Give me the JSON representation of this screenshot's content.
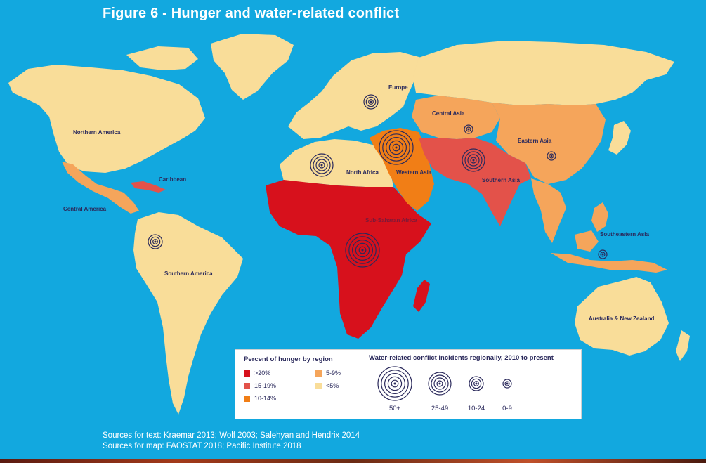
{
  "title": "Figure 6 - Hunger and water-related conflict",
  "colors": {
    "ocean": "#12a8df",
    "gt20": "#d7111c",
    "p15_19": "#e3524a",
    "p10_14": "#f17e16",
    "p5_9": "#f5a55b",
    "lt5": "#f9dd99",
    "ring": "#2b2a5c"
  },
  "regions": [
    {
      "id": "northern-america",
      "label": "Northern America",
      "hunger": "<5%"
    },
    {
      "id": "central-america",
      "label": "Central America",
      "hunger": "5-9%"
    },
    {
      "id": "caribbean",
      "label": "Caribbean",
      "hunger": "15-19%"
    },
    {
      "id": "southern-america",
      "label": "Southern America",
      "hunger": "<5%"
    },
    {
      "id": "europe",
      "label": "Europe",
      "hunger": "<5%"
    },
    {
      "id": "north-africa",
      "label": "North Africa",
      "hunger": "<5%"
    },
    {
      "id": "western-asia",
      "label": "Western Asia",
      "hunger": "10-14%"
    },
    {
      "id": "central-asia",
      "label": "Central Asia",
      "hunger": "5-9%"
    },
    {
      "id": "southern-asia",
      "label": "Southern Asia",
      "hunger": "15-19%"
    },
    {
      "id": "eastern-asia",
      "label": "Eastern Asia",
      "hunger": "5-9%"
    },
    {
      "id": "southeastern-asia",
      "label": "Southeastern Asia",
      "hunger": "5-9%"
    },
    {
      "id": "sub-saharan-africa",
      "label": "Sub-Saharan Africa",
      "hunger": ">20%"
    },
    {
      "id": "australia-nz",
      "label": "Australia & New Zealand",
      "hunger": "<5%"
    }
  ],
  "conflict_markers": [
    {
      "region": "Europe",
      "bin": "10-24"
    },
    {
      "region": "North Africa",
      "bin": "25-49"
    },
    {
      "region": "Western Asia",
      "bin": "50+"
    },
    {
      "region": "Central Asia",
      "bin": "0-9"
    },
    {
      "region": "Southern Asia",
      "bin": "25-49"
    },
    {
      "region": "Eastern Asia",
      "bin": "0-9"
    },
    {
      "region": "Southern America",
      "bin": "10-24"
    },
    {
      "region": "Sub-Saharan Africa",
      "bin": "50+"
    },
    {
      "region": "Southeastern Asia",
      "bin": "0-9"
    }
  ],
  "legend": {
    "hunger_title": "Percent of hunger by region",
    "hunger_items": [
      {
        "label": ">20%",
        "color": "#d7111c"
      },
      {
        "label": "15-19%",
        "color": "#e3524a"
      },
      {
        "label": "10-14%",
        "color": "#f17e16"
      },
      {
        "label": "5-9%",
        "color": "#f5a55b"
      },
      {
        "label": "<5%",
        "color": "#f9dd99"
      }
    ],
    "conflict_title": "Water-related conflict incidents regionally, 2010 to present",
    "conflict_sizes": [
      "50+",
      "25-49",
      "10-24",
      "0-9"
    ]
  },
  "sources": {
    "text": "Sources for text: Kraemar 2013; Wolf 2003; Salehyan and Hendrix 2014",
    "map": "Sources for map: FAOSTAT 2018; Pacific Institute 2018"
  }
}
